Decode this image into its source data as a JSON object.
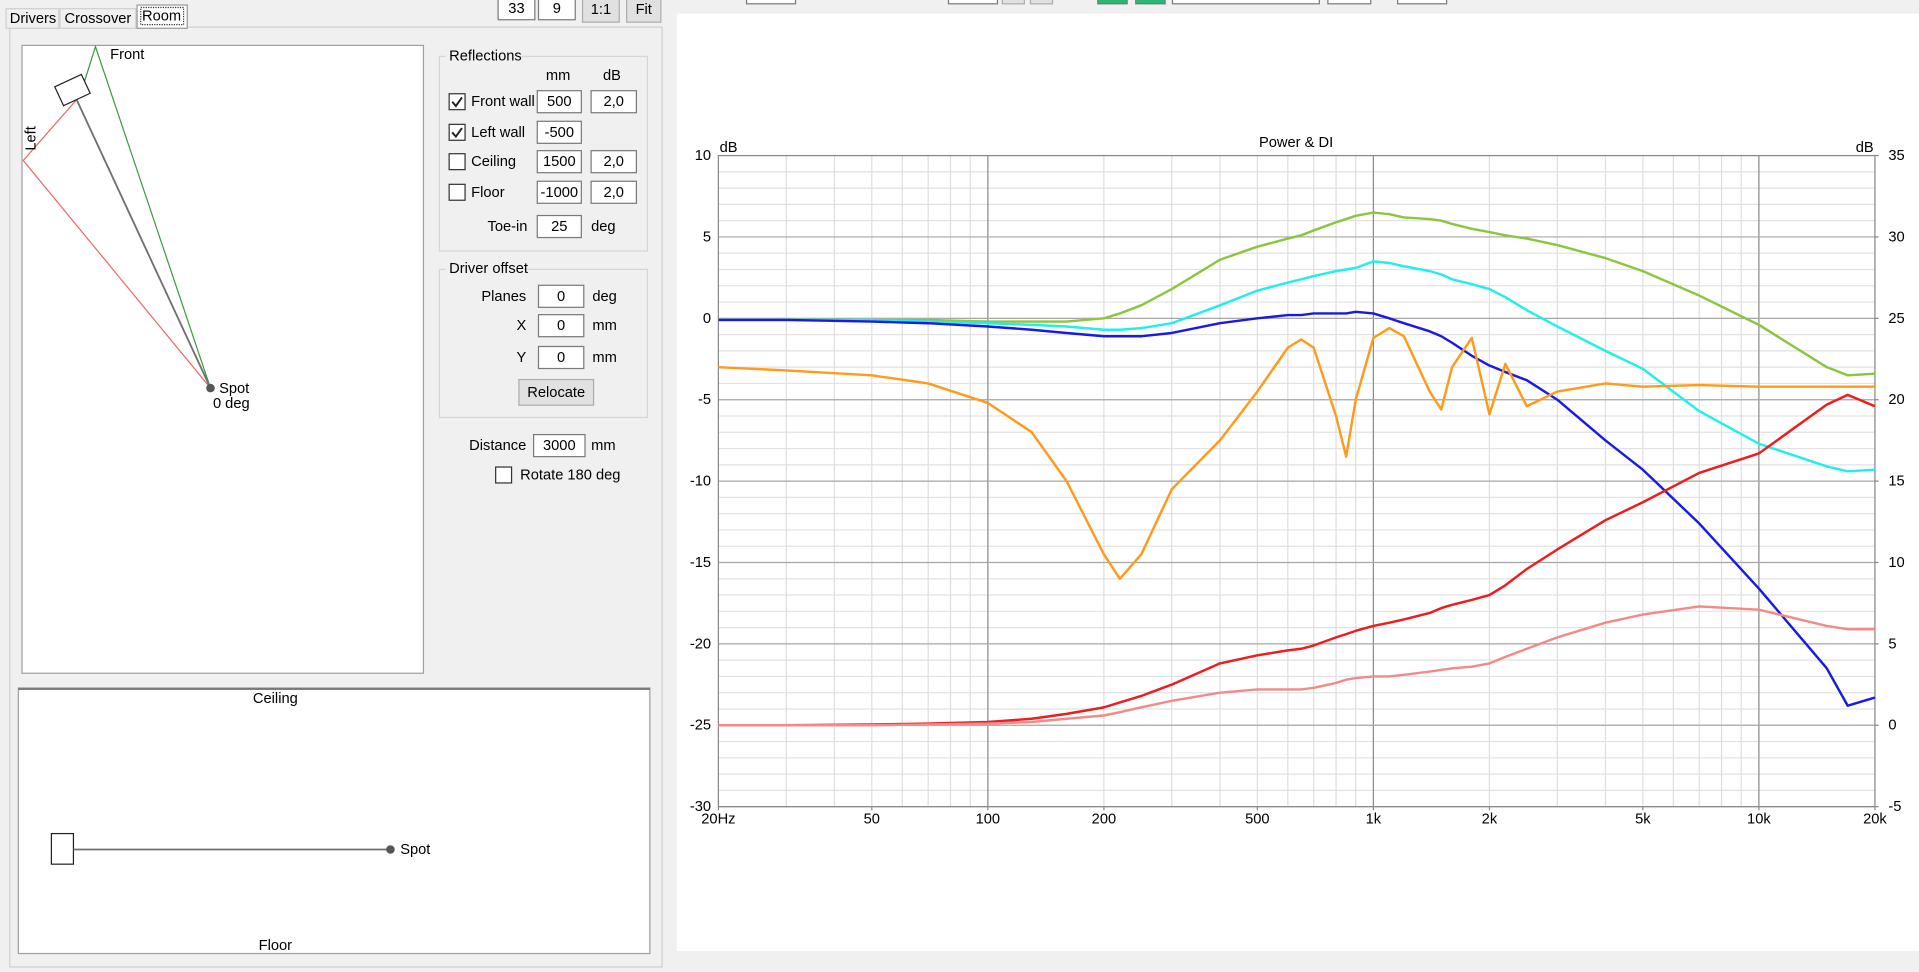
{
  "tabs": [
    "Drivers",
    "Crossover",
    "Room"
  ],
  "toolbar": {
    "values": [
      "33",
      "9"
    ],
    "buttons": [
      "1:1",
      "Fit"
    ]
  },
  "room_view": {
    "top": {
      "front": "Front",
      "left": "Left",
      "spot": "Spot",
      "angle": "0 deg"
    },
    "side": {
      "ceiling": "Ceiling",
      "floor": "Floor",
      "spot": "Spot"
    }
  },
  "reflections": {
    "title": "Reflections",
    "headers": [
      "mm",
      "dB"
    ],
    "rows": [
      {
        "label": "Front wall",
        "checked": true,
        "mm": "500",
        "db": "2,0"
      },
      {
        "label": "Left wall",
        "checked": true,
        "mm": "-500"
      },
      {
        "label": "Ceiling",
        "checked": false,
        "mm": "1500",
        "db": "2,0"
      },
      {
        "label": "Floor",
        "checked": false,
        "mm": "-1000",
        "db": "2,0"
      }
    ],
    "toe_in": {
      "label": "Toe-in",
      "value": "25",
      "unit": "deg"
    }
  },
  "driver_offset": {
    "title": "Driver offset",
    "rows": [
      {
        "label": "Planes",
        "value": "0",
        "unit": "deg"
      },
      {
        "label": "X",
        "value": "0",
        "unit": "mm"
      },
      {
        "label": "Y",
        "value": "0",
        "unit": "mm"
      }
    ],
    "button": "Relocate"
  },
  "distance": {
    "label": "Distance",
    "value": "3000",
    "unit": "mm"
  },
  "rotate": {
    "label": "Rotate 180 deg",
    "checked": false
  },
  "chart_data": {
    "type": "line",
    "title": "Power & DI",
    "ylabel": "dB",
    "y2label": "dB",
    "log_x": true,
    "grid": true,
    "xlim": [
      20,
      20000
    ],
    "xticks": [
      {
        "value": 20,
        "label": "20Hz"
      },
      50,
      100,
      200,
      500,
      {
        "value": 1000,
        "label": "1k"
      },
      {
        "value": 2000,
        "label": "2k"
      },
      {
        "value": 5000,
        "label": "5k"
      },
      {
        "value": 10000,
        "label": "10k"
      },
      {
        "value": 20000,
        "label": "20k"
      }
    ],
    "ylim": [
      -30,
      10
    ],
    "yticks": [
      -30,
      -25,
      -20,
      -15,
      -10,
      -5,
      0,
      5,
      10
    ],
    "y2lim": [
      -5,
      35
    ],
    "y2ticks": [
      -5,
      0,
      5,
      10,
      15,
      20,
      25,
      30,
      35
    ],
    "x": [
      20,
      30,
      50,
      70,
      100,
      130,
      160,
      200,
      220,
      250,
      300,
      400,
      500,
      600,
      650,
      700,
      800,
      850,
      900,
      1000,
      1100,
      1200,
      1400,
      1500,
      1600,
      1800,
      2000,
      2200,
      2500,
      3000,
      4000,
      5000,
      7000,
      10000,
      15000,
      17000,
      20000
    ],
    "series": [
      {
        "color": "#8cc63f",
        "values": [
          -0.1,
          -0.1,
          -0.1,
          -0.1,
          -0.2,
          -0.2,
          -0.2,
          0,
          0.3,
          0.8,
          1.8,
          3.6,
          4.4,
          4.9,
          5.1,
          5.4,
          5.9,
          6.1,
          6.3,
          6.5,
          6.4,
          6.2,
          6.1,
          6.0,
          5.8,
          5.5,
          5.3,
          5.1,
          4.9,
          4.5,
          3.7,
          2.9,
          1.4,
          -0.4,
          -3.0,
          -3.5,
          -3.4
        ]
      },
      {
        "color": "#22eeee",
        "values": [
          -0.1,
          -0.1,
          -0.1,
          -0.2,
          -0.3,
          -0.4,
          -0.5,
          -0.7,
          -0.7,
          -0.6,
          -0.3,
          0.8,
          1.7,
          2.2,
          2.4,
          2.6,
          2.9,
          3.0,
          3.1,
          3.5,
          3.4,
          3.2,
          2.9,
          2.7,
          2.4,
          2.1,
          1.8,
          1.3,
          0.5,
          -0.5,
          -2.0,
          -3.1,
          -5.7,
          -7.7,
          -9.1,
          -9.4,
          -9.3
        ]
      },
      {
        "color": "#1a1ae6",
        "values": [
          -0.1,
          -0.1,
          -0.2,
          -0.3,
          -0.5,
          -0.7,
          -0.9,
          -1.1,
          -1.1,
          -1.1,
          -0.9,
          -0.3,
          0,
          0.2,
          0.2,
          0.3,
          0.3,
          0.3,
          0.4,
          0.3,
          0,
          -0.3,
          -0.8,
          -1.1,
          -1.5,
          -2.3,
          -2.9,
          -3.3,
          -3.8,
          -5.0,
          -7.5,
          -9.3,
          -12.6,
          -16.6,
          -21.5,
          -23.8,
          -23.3
        ]
      },
      {
        "color": "#ff9a1a",
        "values": [
          -3,
          -3.2,
          -3.5,
          -4,
          -5.2,
          -7,
          -10,
          -14.5,
          -16,
          -14.5,
          -10.5,
          -7.5,
          -4.5,
          -1.8,
          -1.3,
          -1.8,
          -6,
          -8.5,
          -5,
          -1.2,
          -0.6,
          -1.1,
          -4.5,
          -5.6,
          -3,
          -1.2,
          -5.9,
          -2.8,
          -5.4,
          -4.5,
          -4,
          -4.2,
          -4.1,
          -4.2,
          -4.2,
          -4.2,
          -4.2
        ]
      },
      {
        "color": "#ee1c1c",
        "axis": "y2",
        "values": [
          0,
          0,
          0.05,
          0.1,
          0.2,
          0.4,
          0.7,
          1.1,
          1.4,
          1.8,
          2.5,
          3.8,
          4.3,
          4.6,
          4.7,
          4.9,
          5.4,
          5.6,
          5.8,
          6.1,
          6.3,
          6.5,
          6.9,
          7.2,
          7.4,
          7.7,
          8.0,
          8.6,
          9.6,
          10.8,
          12.6,
          13.7,
          15.5,
          16.7,
          19.7,
          20.3,
          19.6
        ]
      },
      {
        "color": "#f28a8a",
        "axis": "y2",
        "values": [
          0,
          0,
          0,
          0.05,
          0.1,
          0.2,
          0.4,
          0.6,
          0.8,
          1.1,
          1.5,
          2.0,
          2.2,
          2.2,
          2.2,
          2.3,
          2.6,
          2.8,
          2.9,
          3.0,
          3.0,
          3.1,
          3.3,
          3.4,
          3.5,
          3.6,
          3.8,
          4.2,
          4.7,
          5.4,
          6.3,
          6.8,
          7.3,
          7.1,
          6.1,
          5.9,
          5.9
        ]
      }
    ]
  }
}
